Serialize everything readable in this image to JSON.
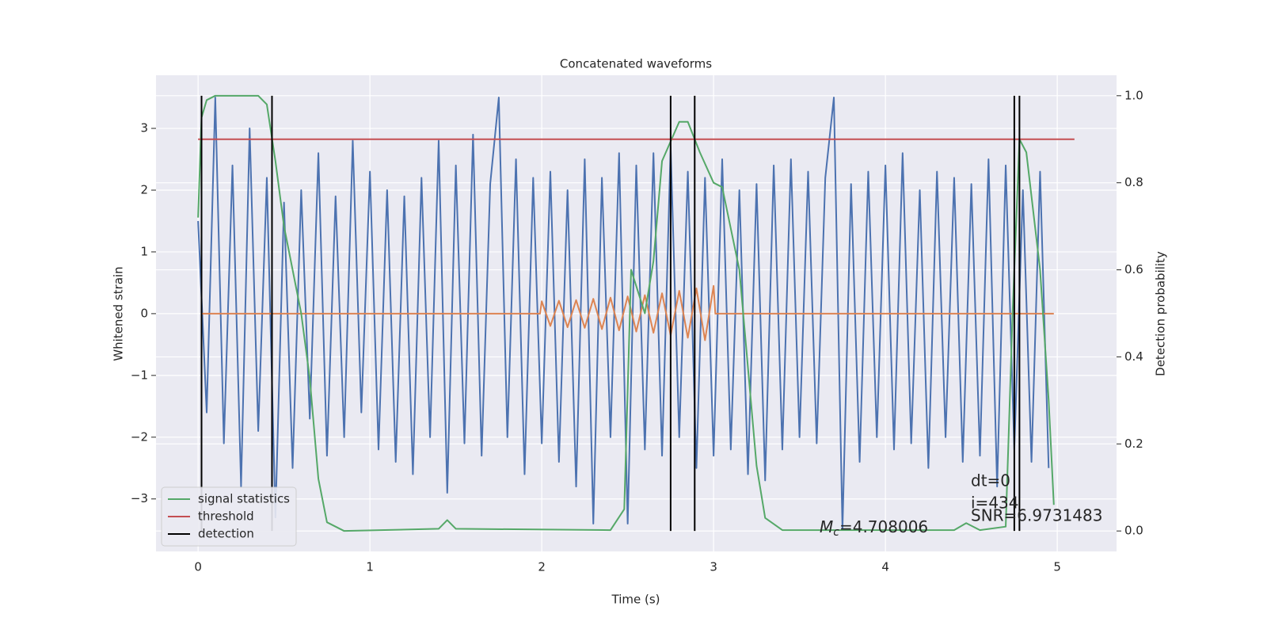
{
  "chart_data": {
    "type": "line",
    "title": "Concatenated waveforms",
    "xlabel": "Time (s)",
    "ylabel": "Whitened strain",
    "y2label": "Detection probability",
    "xlim": [
      -0.245,
      5.345
    ],
    "ylim": [
      -3.85,
      3.86
    ],
    "y2lim": [
      -0.047,
      1.047
    ],
    "xticks": [
      0,
      1,
      2,
      3,
      4,
      5
    ],
    "yticks": [
      {
        "value": -3,
        "label": "−3"
      },
      {
        "value": -2,
        "label": "−2"
      },
      {
        "value": -1,
        "label": "−1"
      },
      0,
      1,
      2,
      3
    ],
    "y2ticks": [
      {
        "value": 0,
        "label": "0.0"
      },
      0.2,
      0.4,
      0.6,
      0.8,
      {
        "value": 1,
        "label": "1.0"
      }
    ],
    "grid": true,
    "legend": "lower left",
    "series": [
      {
        "color": "#4c72b0",
        "x": [
          0,
          0.05,
          0.1,
          0.15,
          0.2,
          0.25,
          0.3,
          0.35,
          0.4,
          0.45,
          0.5,
          0.55,
          0.6,
          0.65,
          0.7,
          0.75,
          0.8,
          0.85,
          0.9,
          0.95,
          1,
          1.05,
          1.1,
          1.15,
          1.2,
          1.25,
          1.3,
          1.35,
          1.4,
          1.45,
          1.5,
          1.55,
          1.6,
          1.65,
          1.7,
          1.75,
          1.8,
          1.85,
          1.9,
          1.95,
          2,
          2.05,
          2.1,
          2.15,
          2.2,
          2.25,
          2.3,
          2.35,
          2.4,
          2.45,
          2.5,
          2.55,
          2.6,
          2.65,
          2.7,
          2.75,
          2.8,
          2.85,
          2.9,
          2.95,
          3,
          3.05,
          3.1,
          3.15,
          3.2,
          3.25,
          3.3,
          3.35,
          3.4,
          3.45,
          3.5,
          3.55,
          3.6,
          3.65,
          3.7,
          3.75,
          3.8,
          3.85,
          3.9,
          3.95,
          4,
          4.05,
          4.1,
          4.15,
          4.2,
          4.25,
          4.3,
          4.35,
          4.4,
          4.45,
          4.5,
          4.55,
          4.6,
          4.65,
          4.7,
          4.75,
          4.8,
          4.85,
          4.9,
          4.95
        ],
        "values": [
          1.5,
          -1.6,
          3.5,
          -2.1,
          2.4,
          -2.8,
          3.0,
          -1.9,
          2.2,
          -3.3,
          1.8,
          -2.5,
          2.0,
          -1.7,
          2.6,
          -2.3,
          1.9,
          -2.0,
          2.8,
          -1.6,
          2.3,
          -2.2,
          2.0,
          -2.4,
          1.9,
          -2.6,
          2.2,
          -2.0,
          2.8,
          -2.9,
          2.4,
          -2.1,
          2.9,
          -2.3,
          2.1,
          3.5,
          -2.0,
          2.5,
          -2.6,
          2.2,
          -2.1,
          2.3,
          -2.4,
          2.0,
          -2.8,
          2.5,
          -3.4,
          2.2,
          -2.0,
          2.6,
          -3.4,
          2.4,
          -2.2,
          2.6,
          -2.3,
          2.7,
          -2.0,
          2.3,
          -2.5,
          2.2,
          -2.3,
          2.5,
          -2.2,
          2.0,
          -2.6,
          2.1,
          -2.7,
          2.4,
          -2.2,
          2.5,
          -2.0,
          2.3,
          -2.1,
          2.2,
          3.5,
          -3.5,
          2.1,
          -2.4,
          2.3,
          -2.0,
          2.4,
          -2.2,
          2.6,
          -2.1,
          2.0,
          -2.5,
          2.3,
          -2.0,
          2.2,
          -2.4,
          2.1,
          -2.3,
          2.5,
          -2.8,
          2.4,
          -2.2,
          2.0,
          -2.4,
          2.3,
          -2.5
        ]
      },
      {
        "color": "#dd8452",
        "x": [
          0.02,
          1.99,
          2,
          2.05,
          2.1,
          2.15,
          2.2,
          2.25,
          2.3,
          2.35,
          2.4,
          2.45,
          2.5,
          2.55,
          2.6,
          2.65,
          2.7,
          2.75,
          2.8,
          2.85,
          2.9,
          2.95,
          3,
          3.01,
          4.98
        ],
        "values": [
          0,
          0,
          0.2,
          -0.2,
          0.21,
          -0.22,
          0.22,
          -0.23,
          0.24,
          -0.25,
          0.26,
          -0.27,
          0.28,
          -0.29,
          0.3,
          -0.31,
          0.33,
          -0.35,
          0.37,
          -0.39,
          0.41,
          -0.43,
          0.45,
          0,
          0
        ]
      },
      {
        "name": "signal statistics",
        "color": "#55a868",
        "axis": "y2",
        "x": [
          0,
          0.02,
          0.05,
          0.1,
          0.35,
          0.4,
          0.45,
          0.5,
          0.6,
          0.65,
          0.7,
          0.75,
          0.85,
          1.4,
          1.45,
          1.5,
          2.4,
          2.48,
          2.52,
          2.6,
          2.65,
          2.7,
          2.8,
          2.85,
          2.92,
          3,
          3.05,
          3.15,
          3.25,
          3.3,
          3.4,
          4.4,
          4.47,
          4.55,
          4.7,
          4.74,
          4.78,
          4.82,
          4.9,
          4.95,
          4.98
        ],
        "values": [
          0.72,
          0.95,
          0.99,
          1.0,
          1.0,
          0.98,
          0.85,
          0.7,
          0.5,
          0.35,
          0.12,
          0.02,
          0.0,
          0.005,
          0.025,
          0.005,
          0.002,
          0.05,
          0.6,
          0.5,
          0.62,
          0.85,
          0.94,
          0.94,
          0.87,
          0.8,
          0.79,
          0.6,
          0.15,
          0.03,
          0.002,
          0.002,
          0.018,
          0.002,
          0.01,
          0.5,
          0.9,
          0.87,
          0.6,
          0.3,
          0.06
        ]
      },
      {
        "name": "threshold",
        "color": "#c44e52",
        "axis": "y2",
        "x": [
          0,
          5.1
        ],
        "values": [
          0.9,
          0.9
        ]
      },
      {
        "name": "detection",
        "color": "#000000",
        "axis": "y2",
        "type": "vline",
        "x": [
          0.02,
          0.43,
          2.75,
          2.89,
          4.75,
          4.78
        ],
        "ymin": 0,
        "ymax": 1
      }
    ],
    "annotations": {
      "chirp_mass": {
        "symbol": "M",
        "subscript": "c",
        "text": "=4.708006"
      },
      "lines": [
        "dt=0",
        "i=434",
        "SNR=6.9731483"
      ]
    }
  }
}
